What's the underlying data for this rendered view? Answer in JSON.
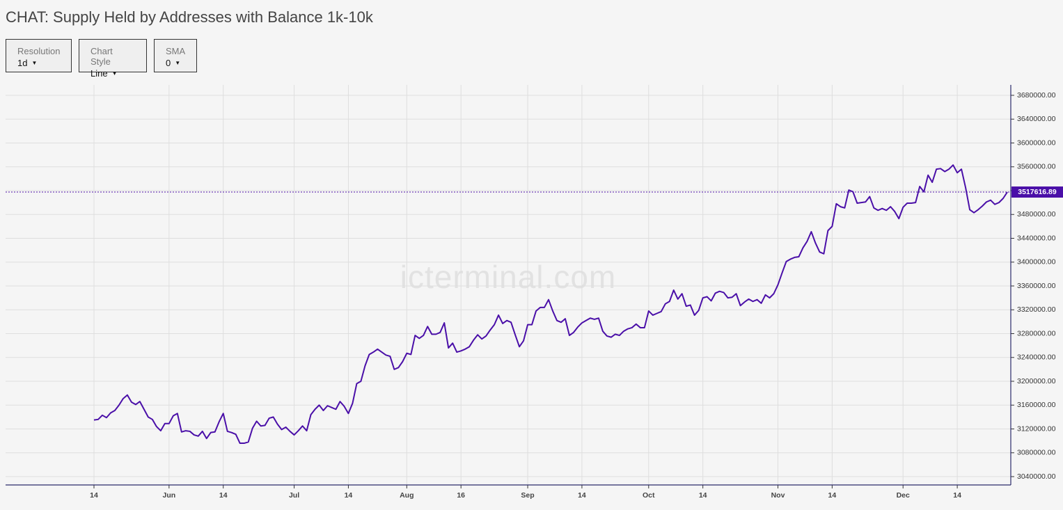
{
  "title": "CHAT: Supply Held by Addresses with Balance 1k-10k",
  "controls": [
    {
      "label": "Resolution",
      "value": "1d"
    },
    {
      "label": "Chart Style",
      "value": "Line"
    },
    {
      "label": "SMA",
      "value": "0"
    }
  ],
  "chart_data": {
    "type": "line",
    "watermark": "icterminal.com",
    "color": "#4a0fa8",
    "grid": true,
    "ylim": [
      3026000,
      3697500
    ],
    "yticks": [
      {
        "value": 3040000,
        "label": "3040000.00"
      },
      {
        "value": 3080000,
        "label": "3080000.00"
      },
      {
        "value": 3120000,
        "label": "3120000.00"
      },
      {
        "value": 3160000,
        "label": "3160000.00"
      },
      {
        "value": 3200000,
        "label": "3200000.00"
      },
      {
        "value": 3240000,
        "label": "3240000.00"
      },
      {
        "value": 3280000,
        "label": "3280000.00"
      },
      {
        "value": 3320000,
        "label": "3320000.00"
      },
      {
        "value": 3360000,
        "label": "3360000.00"
      },
      {
        "value": 3400000,
        "label": "3400000.00"
      },
      {
        "value": 3440000,
        "label": "3440000.00"
      },
      {
        "value": 3480000,
        "label": "3480000.00"
      },
      {
        "value": 3520000,
        "label": "3520000.00"
      },
      {
        "value": 3560000,
        "label": "3560000.00"
      },
      {
        "value": 3600000,
        "label": "3600000.00"
      },
      {
        "value": 3640000,
        "label": "3640000.00"
      },
      {
        "value": 3680000,
        "label": "3680000.00"
      }
    ],
    "categories": [
      "14",
      null,
      null,
      null,
      null,
      null,
      null,
      null,
      null,
      null,
      null,
      null,
      null,
      null,
      null,
      null,
      null,
      null,
      "Jun",
      null,
      null,
      null,
      null,
      null,
      null,
      null,
      null,
      null,
      null,
      null,
      null,
      "14",
      null,
      null,
      null,
      null,
      null,
      null,
      null,
      null,
      null,
      null,
      null,
      null,
      null,
      null,
      null,
      null,
      "Jul",
      null,
      null,
      null,
      null,
      null,
      null,
      null,
      null,
      null,
      null,
      null,
      null,
      "14",
      null,
      null,
      null,
      null,
      null,
      null,
      null,
      null,
      null,
      null,
      null,
      null,
      null,
      "Aug",
      null,
      null,
      null,
      null,
      null,
      null,
      null,
      null,
      null,
      null,
      null,
      null,
      "16",
      null,
      null,
      null,
      null,
      null,
      null,
      null,
      null,
      null,
      null,
      null,
      null,
      null,
      null,
      null,
      "Sep",
      null,
      null,
      null,
      null,
      null,
      null,
      null,
      null,
      null,
      null,
      null,
      null,
      "14",
      null,
      null,
      null,
      null,
      null,
      null,
      null,
      null,
      null,
      null,
      null,
      null,
      null,
      null,
      null,
      "Oct",
      null,
      null,
      null,
      null,
      null,
      null,
      null,
      null,
      null,
      null,
      null,
      null,
      "14",
      null,
      null,
      null,
      null,
      null,
      null,
      null,
      null,
      null,
      null,
      null,
      null,
      null,
      null,
      null,
      null,
      null,
      "Nov",
      null,
      null,
      null,
      null,
      null,
      null,
      null,
      null,
      null,
      null,
      null,
      null,
      "14",
      null,
      null,
      null,
      null,
      null,
      null,
      null,
      null,
      null,
      null,
      null,
      null,
      null,
      null,
      null,
      null,
      "Dec",
      null,
      null,
      null,
      null,
      null,
      null,
      null,
      null,
      null,
      null,
      null,
      null,
      "14",
      null,
      null,
      null,
      null,
      null,
      null,
      null,
      null,
      null,
      null,
      null,
      null
    ],
    "values": [
      3135000,
      3136000,
      3143000,
      3139000,
      3147000,
      3151000,
      3160000,
      3171000,
      3177000,
      3165000,
      3161000,
      3166000,
      3153000,
      3140000,
      3136000,
      3124000,
      3117000,
      3129000,
      3129000,
      3142000,
      3146000,
      3115000,
      3117000,
      3116000,
      3110000,
      3108000,
      3116000,
      3104000,
      3114000,
      3115000,
      3132000,
      3146000,
      3116000,
      3114000,
      3111000,
      3096000,
      3096000,
      3098000,
      3121000,
      3133000,
      3125000,
      3126000,
      3138000,
      3140000,
      3128000,
      3119000,
      3123000,
      3116000,
      3110000,
      3117000,
      3125000,
      3117000,
      3144000,
      3153000,
      3160000,
      3151000,
      3159000,
      3156000,
      3153000,
      3166000,
      3158000,
      3146000,
      3163000,
      3196000,
      3200000,
      3226000,
      3245000,
      3249000,
      3254000,
      3249000,
      3244000,
      3242000,
      3220000,
      3223000,
      3233000,
      3247000,
      3245000,
      3277000,
      3272000,
      3277000,
      3292000,
      3279000,
      3279000,
      3282000,
      3298000,
      3256000,
      3264000,
      3249000,
      3251000,
      3254000,
      3258000,
      3269000,
      3278000,
      3271000,
      3276000,
      3286000,
      3295000,
      3311000,
      3297000,
      3302000,
      3299000,
      3278000,
      3258000,
      3268000,
      3295000,
      3295000,
      3318000,
      3324000,
      3324000,
      3337000,
      3318000,
      3302000,
      3299000,
      3305000,
      3277000,
      3282000,
      3291000,
      3298000,
      3302000,
      3306000,
      3304000,
      3306000,
      3284000,
      3276000,
      3274000,
      3279000,
      3277000,
      3284000,
      3288000,
      3290000,
      3296000,
      3290000,
      3290000,
      3318000,
      3311000,
      3314000,
      3317000,
      3330000,
      3334000,
      3353000,
      3338000,
      3347000,
      3326000,
      3328000,
      3311000,
      3319000,
      3340000,
      3342000,
      3335000,
      3348000,
      3351000,
      3349000,
      3340000,
      3341000,
      3347000,
      3327000,
      3333000,
      3338000,
      3334000,
      3337000,
      3331000,
      3345000,
      3340000,
      3347000,
      3362000,
      3382000,
      3401000,
      3405000,
      3408000,
      3409000,
      3424000,
      3435000,
      3451000,
      3432000,
      3417000,
      3414000,
      3453000,
      3460000,
      3498000,
      3493000,
      3491000,
      3521000,
      3518000,
      3499000,
      3500000,
      3501000,
      3510000,
      3491000,
      3487000,
      3490000,
      3487000,
      3493000,
      3485000,
      3473000,
      3492000,
      3499000,
      3499000,
      3500000,
      3527000,
      3518000,
      3546000,
      3534000,
      3556000,
      3557000,
      3552000,
      3556000,
      3563000,
      3550000,
      3556000,
      3525000,
      3488000,
      3483000,
      3488000,
      3494000,
      3501000,
      3504000,
      3497000,
      3500000,
      3507000,
      3517616.89
    ]
  }
}
